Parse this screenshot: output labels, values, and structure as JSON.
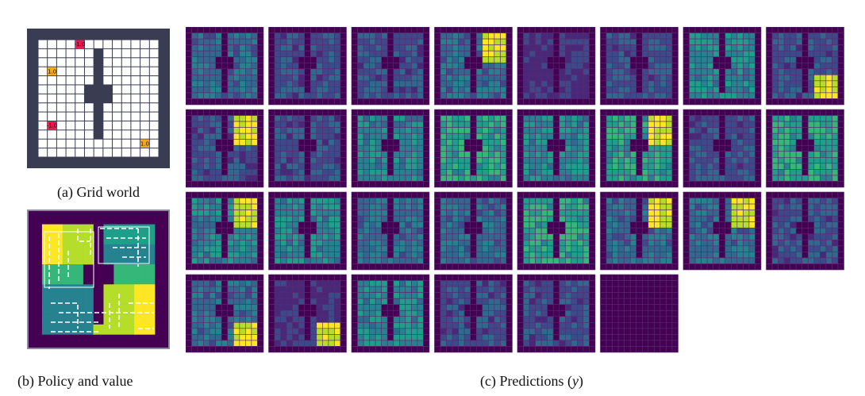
{
  "captions": {
    "grid_world": "(a) Grid world",
    "policy_value": "(b) Policy and value",
    "predictions_prefix": "(c) Predictions (",
    "predictions_symbol": "y",
    "predictions_suffix": ")"
  },
  "grid_world": {
    "size": 13,
    "rewards": [
      {
        "row": 0,
        "col": 4,
        "label": "-1.0",
        "color": "#e8174c"
      },
      {
        "row": 3,
        "col": 1,
        "label": "1.0",
        "color": "#f5a81c"
      },
      {
        "row": 9,
        "col": 1,
        "label": "-1.0",
        "color": "#e8174c"
      },
      {
        "row": 11,
        "col": 11,
        "label": "1.0",
        "color": "#f5a81c"
      }
    ],
    "frame_color": "#3a3d52",
    "cell_color": "#ffffff"
  },
  "colors": {
    "wall": "#3b0f4f",
    "grid_line": "#5a2a70",
    "viridis": [
      "#440154",
      "#482878",
      "#3e4989",
      "#31688e",
      "#26828e",
      "#1f9e89",
      "#35b779",
      "#6ece58",
      "#b5de2b",
      "#fde725"
    ]
  },
  "prediction_grid": {
    "rows": 4,
    "cols": 8,
    "count": 30
  }
}
